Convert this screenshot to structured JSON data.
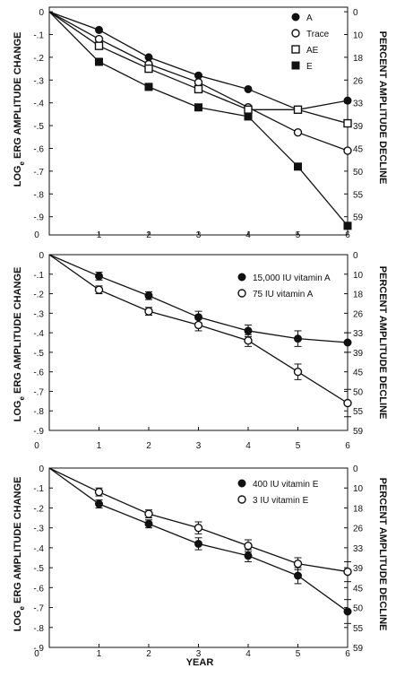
{
  "chart_data": [
    {
      "type": "line",
      "xlabel": "",
      "ylabel_left": "LOGe ERG AMPLITUDE CHANGE",
      "ylabel_right": "PERCENT AMPLITUDE DECLINE",
      "x_ticks": [
        "0",
        "1",
        "2",
        "3",
        "4",
        "5",
        "6"
      ],
      "y_ticks": [
        "0",
        "-.1",
        "-.2",
        "-.3",
        "-.4",
        "-.5",
        "-.6",
        "-.7",
        "-.8",
        "-.9"
      ],
      "right_ticks": [
        "0",
        "10",
        "18",
        "26",
        "33",
        "39",
        "45",
        "50",
        "55",
        "59"
      ],
      "xlim": [
        0,
        6
      ],
      "ylim": [
        -0.98,
        0.02
      ],
      "legend_position": "top-right",
      "series": [
        {
          "name": "A",
          "marker": "filled-circle",
          "x": [
            0,
            1,
            2,
            3,
            4,
            5,
            6
          ],
          "y": [
            0,
            -0.08,
            -0.2,
            -0.28,
            -0.34,
            -0.43,
            -0.39
          ]
        },
        {
          "name": "Trace",
          "marker": "open-circle",
          "x": [
            0,
            1,
            2,
            3,
            4,
            5,
            6
          ],
          "y": [
            0,
            -0.12,
            -0.23,
            -0.31,
            -0.42,
            -0.53,
            -0.61
          ]
        },
        {
          "name": "AE",
          "marker": "open-square",
          "x": [
            0,
            1,
            2,
            3,
            4,
            5,
            6
          ],
          "y": [
            0,
            -0.15,
            -0.25,
            -0.34,
            -0.43,
            -0.43,
            -0.49
          ]
        },
        {
          "name": "E",
          "marker": "filled-square",
          "x": [
            0,
            1,
            2,
            3,
            4,
            5,
            6
          ],
          "y": [
            0,
            -0.22,
            -0.33,
            -0.42,
            -0.46,
            -0.68,
            -0.94
          ]
        }
      ]
    },
    {
      "type": "line",
      "xlabel": "",
      "ylabel_left": "LOGe ERG AMPLITUDE CHANGE",
      "ylabel_right": "PERCENT AMPLITUDE DECLINE",
      "x_ticks": [
        "0",
        "1",
        "2",
        "3",
        "4",
        "5",
        "6"
      ],
      "y_ticks": [
        "0",
        "-.1",
        "-.2",
        "-.3",
        "-.4",
        "-.5",
        "-.6",
        "-.7",
        "-.8",
        "-.9"
      ],
      "right_ticks": [
        "0",
        "10",
        "18",
        "26",
        "33",
        "39",
        "45",
        "50",
        "55",
        "59"
      ],
      "xlim": [
        0,
        6
      ],
      "ylim": [
        -0.9,
        0.0
      ],
      "legend_position": "top-right",
      "series": [
        {
          "name": "15,000 IU vitamin A",
          "marker": "filled-circle",
          "x": [
            0,
            1,
            2,
            3,
            4,
            5,
            6
          ],
          "y": [
            0,
            -0.11,
            -0.21,
            -0.32,
            -0.39,
            -0.43,
            -0.45
          ],
          "err": [
            0,
            0.02,
            0.02,
            0.03,
            0.03,
            0.04,
            0.05
          ]
        },
        {
          "name": "75 IU vitamin A",
          "marker": "open-circle",
          "x": [
            0,
            1,
            2,
            3,
            4,
            5,
            6
          ],
          "y": [
            0,
            -0.18,
            -0.29,
            -0.36,
            -0.44,
            -0.6,
            -0.76
          ],
          "err": [
            0,
            0.02,
            0.02,
            0.03,
            0.03,
            0.04,
            0.07
          ]
        }
      ]
    },
    {
      "type": "line",
      "xlabel": "YEAR",
      "ylabel_left": "LOGe ERG AMPLITUDE CHANGE",
      "ylabel_right": "PERCENT AMPLITUDE DECLINE",
      "x_ticks": [
        "0",
        "1",
        "2",
        "3",
        "4",
        "5",
        "6"
      ],
      "y_ticks": [
        "0",
        "-.1",
        "-.2",
        "-.3",
        "-.4",
        "-.5",
        "-.6",
        "-.7",
        "-.8",
        "-.9"
      ],
      "right_ticks": [
        "0",
        "10",
        "18",
        "26",
        "33",
        "39",
        "45",
        "50",
        "55",
        "59"
      ],
      "xlim": [
        0,
        6
      ],
      "ylim": [
        -0.9,
        0.0
      ],
      "legend_position": "top-right",
      "series": [
        {
          "name": "400 IU vitamin E",
          "marker": "filled-circle",
          "x": [
            0,
            1,
            2,
            3,
            4,
            5,
            6
          ],
          "y": [
            0,
            -0.18,
            -0.28,
            -0.38,
            -0.44,
            -0.54,
            -0.72
          ],
          "err": [
            0,
            0.02,
            0.02,
            0.03,
            0.03,
            0.04,
            0.06
          ]
        },
        {
          "name": "3 IU vitamin E",
          "marker": "open-circle",
          "x": [
            0,
            1,
            2,
            3,
            4,
            5,
            6
          ],
          "y": [
            0,
            -0.12,
            -0.23,
            -0.3,
            -0.39,
            -0.48,
            -0.52
          ],
          "err": [
            0,
            0.02,
            0.02,
            0.03,
            0.03,
            0.03,
            0.05
          ]
        }
      ]
    }
  ],
  "labels": {
    "loge_main": "LOG",
    "loge_sub": "e",
    "loge_rest": " ERG AMPLITUDE CHANGE",
    "right_axis": "PERCENT AMPLITUDE DECLINE",
    "year": "YEAR"
  }
}
